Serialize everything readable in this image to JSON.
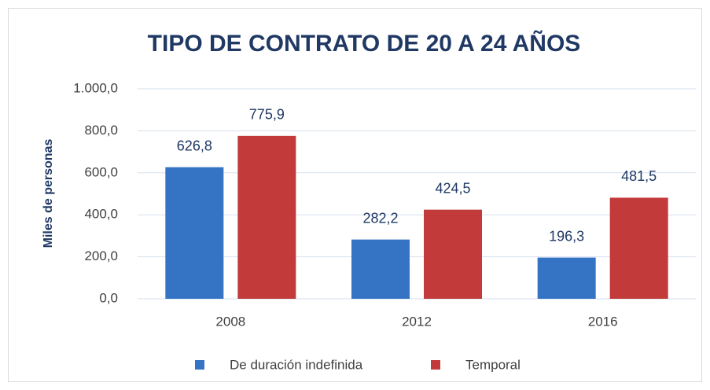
{
  "chart_data": {
    "type": "bar",
    "title": "TIPO DE CONTRATO DE 20 A 24 AÑOS",
    "y_label": "Miles de personas",
    "categories": [
      "2008",
      "2012",
      "2016"
    ],
    "series": [
      {
        "name": "De duración indefinida",
        "color": "#3574c4",
        "values": [
          626.8,
          282.2,
          196.3
        ],
        "value_labels": [
          "626,8",
          "282,2",
          "196,3"
        ]
      },
      {
        "name": "Temporal",
        "color": "#c23a3a",
        "values": [
          775.9,
          424.5,
          481.5
        ],
        "value_labels": [
          "775,9",
          "424,5",
          "481,5"
        ]
      }
    ],
    "ylim": [
      0,
      1000
    ],
    "yticks": [
      {
        "value": 0,
        "label": "0,0"
      },
      {
        "value": 200,
        "label": "200,0"
      },
      {
        "value": 400,
        "label": "400,0"
      },
      {
        "value": 600,
        "label": "600,0"
      },
      {
        "value": 800,
        "label": "800,0"
      },
      {
        "value": 1000,
        "label": "1.000,0"
      }
    ],
    "grid": true,
    "legend": "bottom"
  }
}
